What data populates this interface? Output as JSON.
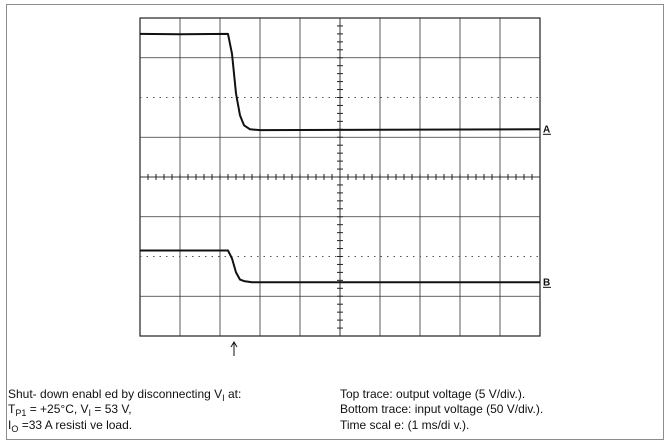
{
  "chart_data": {
    "type": "line",
    "title": "",
    "xlabel": "",
    "ylabel": "",
    "grid": true,
    "divisions": {
      "x": 10,
      "y": 8
    },
    "xlim": [
      0,
      10
    ],
    "ylim": [
      0,
      8
    ],
    "series": [
      {
        "label": "A",
        "points": [
          [
            0,
            7.6
          ],
          [
            1.0,
            7.59
          ],
          [
            2.2,
            7.6
          ],
          [
            2.3,
            7.1
          ],
          [
            2.4,
            6.1
          ],
          [
            2.5,
            5.55
          ],
          [
            2.6,
            5.3
          ],
          [
            2.75,
            5.2
          ],
          [
            3.0,
            5.18
          ],
          [
            10,
            5.2
          ]
        ]
      },
      {
        "label": "B",
        "points": [
          [
            0,
            2.15
          ],
          [
            1.0,
            2.15
          ],
          [
            2.2,
            2.15
          ],
          [
            2.3,
            1.95
          ],
          [
            2.4,
            1.6
          ],
          [
            2.5,
            1.42
          ],
          [
            2.6,
            1.38
          ],
          [
            2.8,
            1.35
          ],
          [
            10,
            1.35
          ]
        ]
      }
    ],
    "marker_x": 2.35
  },
  "caption": {
    "left": {
      "line1_prefix": "Shut- down enabl ed by disconnecting V",
      "line1_sub": "I",
      "line1_suffix": " at:",
      "line2_a": "T",
      "line2_a_sub": "P1",
      "line2_b": " = +25°C, V",
      "line2_b_sub": "I",
      "line2_c": " = 53 V,",
      "line3_a": "I",
      "line3_a_sub": "O",
      "line3_b": " =33 A resisti ve load."
    },
    "right": {
      "line1": "Top trace: output voltage (5 V/div.).",
      "line2": "Bottom trace: input voltage (50 V/div.).",
      "line3": "Time scal e: (1 ms/di v.)."
    }
  }
}
